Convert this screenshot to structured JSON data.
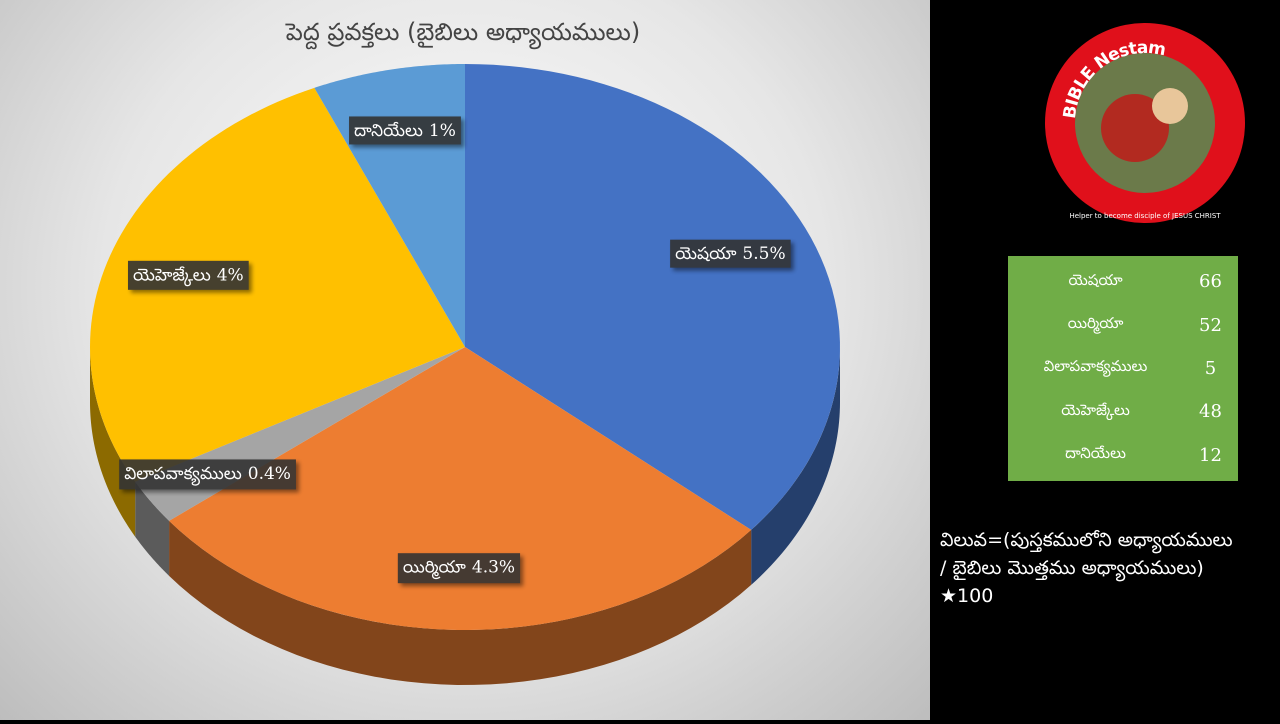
{
  "chart_data": {
    "type": "pie",
    "title": "పెద్ద ప్రవక్తలు (బైబిలు అధ్యాయములు)",
    "categories": [
      "యెషయా",
      "యిర్మియా",
      "విలాపవాక్యములు",
      "యెహెజ్కేలు",
      "దానియేలు"
    ],
    "values": [
      5.5,
      4.3,
      0.4,
      4,
      1
    ],
    "value_labels": [
      "5.5%",
      "4.3%",
      "0.4%",
      "4%",
      "1%"
    ],
    "colors": [
      "#4472c4",
      "#ed7d31",
      "#a5a5a5",
      "#ffc000",
      "#5b9bd5"
    ]
  },
  "table": {
    "rows": [
      [
        "యెషయా",
        66
      ],
      [
        "యిర్మియా",
        52
      ],
      [
        "విలాపవాక్యములు",
        5
      ],
      [
        "యెహెజ్కేలు",
        48
      ],
      [
        "దానియేలు",
        12
      ]
    ]
  },
  "formula": {
    "lines": [
      "విలువ=(పుస్తకములోని అధ్యాయములు",
      "/ బైబిలు మొత్తము అధ్యాయములు)",
      "★100"
    ]
  },
  "logo": {
    "title": "BIBLE Nestam",
    "tagline": "Helper to become disciple of JESUS CHRIST"
  }
}
